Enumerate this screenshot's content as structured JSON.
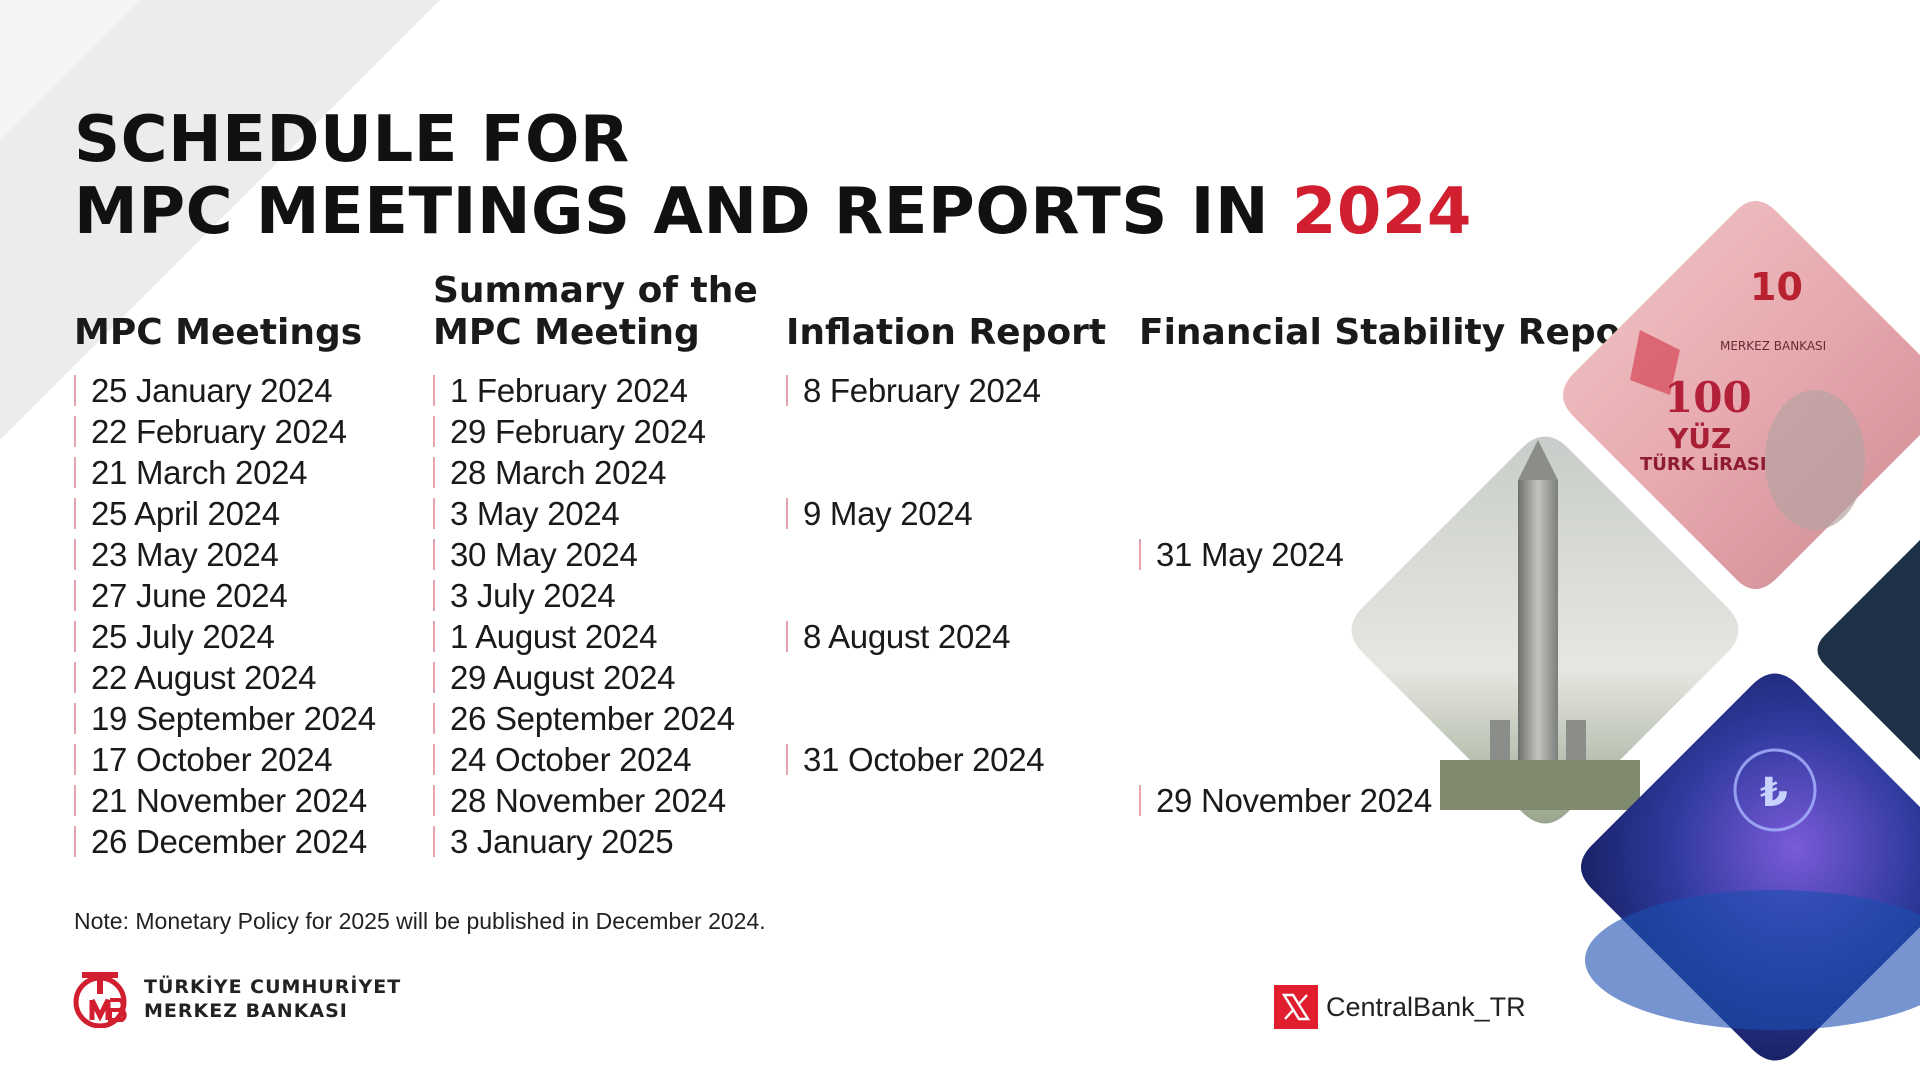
{
  "title": {
    "line1": "SCHEDULE FOR",
    "line2_prefix": "MPC MEETINGS AND REPORTS IN",
    "line2_accent": "2024"
  },
  "columns": [
    {
      "header_lines": [
        "MPC Meetings"
      ],
      "rows": [
        "25 January 2024",
        "22 February 2024",
        "21 March 2024",
        "25 April 2024",
        "23 May 2024",
        "27 June 2024",
        "25 July 2024",
        "22 August 2024",
        "19 September 2024",
        "17 October 2024",
        "21 November 2024",
        "26 December 2024"
      ]
    },
    {
      "header_lines": [
        "Summary of the",
        "MPC Meeting"
      ],
      "rows": [
        "1 February 2024",
        "29 February 2024",
        "28 March 2024",
        "3 May 2024",
        "30 May 2024",
        "3 July 2024",
        "1 August 2024",
        "29 August 2024",
        "26 September 2024",
        "24 October 2024",
        "28 November 2024",
        "3 January 2025"
      ]
    },
    {
      "header_lines": [
        "Inflation Report"
      ],
      "rows": [
        "8 February 2024",
        "",
        "",
        "9 May 2024",
        "",
        "",
        "8 August 2024",
        "",
        "",
        "31 October 2024",
        "",
        ""
      ]
    },
    {
      "header_lines": [
        "Financial Stability Report"
      ],
      "rows": [
        "",
        "",
        "",
        "",
        "31 May 2024",
        "",
        "",
        "",
        "",
        "",
        "29 November 2024",
        ""
      ]
    }
  ],
  "note": "Note: Monetary Policy for 2025 will be published in December 2024.",
  "logo": {
    "line1": "TÜRKİYE CUMHURİYET",
    "line2": "MERKEZ BANKASI"
  },
  "social": {
    "icon": "x-logo-icon",
    "handle": "CentralBank_TR"
  },
  "colors": {
    "accent": "#d21f2f",
    "bar": "#e7a3ad",
    "text": "#111111",
    "navy": "#1f3147"
  },
  "banknote": {
    "denomination_large": "10",
    "denomination": "100",
    "word": "YÜZ",
    "currency": "TÜRK LİRASI",
    "bank": "MERKEZ BANKASI"
  }
}
